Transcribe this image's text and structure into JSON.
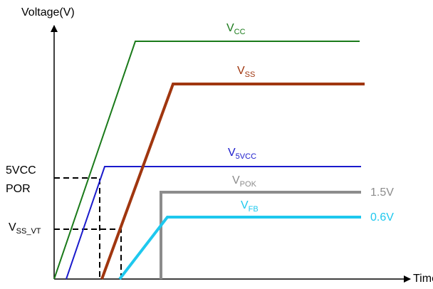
{
  "axes": {
    "y_label": "Voltage(V)",
    "x_label": "Time"
  },
  "signals": [
    {
      "name": "V",
      "subscript": "CC"
    },
    {
      "name": "V",
      "subscript": "SS"
    },
    {
      "name": "V",
      "subscript": "5VCC"
    },
    {
      "name": "V",
      "subscript": "POK",
      "level": "1.5V"
    },
    {
      "name": "V",
      "subscript": "FB",
      "level": "0.6V"
    }
  ],
  "thresholds": [
    {
      "line1": "5VCC",
      "line2": "POR"
    },
    {
      "name": "V",
      "subscript": "SS_VT"
    }
  ]
}
